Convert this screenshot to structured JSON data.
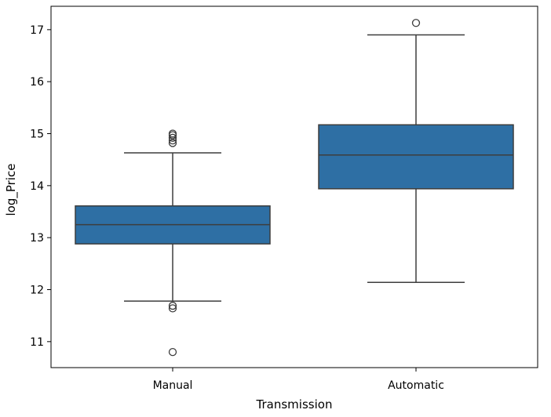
{
  "chart_data": {
    "type": "box",
    "title": "",
    "xlabel": "Transmission",
    "ylabel": "log_Price",
    "ylim": [
      10.5,
      17.45
    ],
    "yticks": [
      11,
      12,
      13,
      14,
      15,
      16,
      17
    ],
    "grid": false,
    "legend": "none",
    "box_color": "#2e6fa4",
    "line_color": "#3d3d3d",
    "categories": [
      "Manual",
      "Automatic"
    ],
    "boxes": [
      {
        "category": "Manual",
        "whisker_low": 11.78,
        "q1": 12.88,
        "median": 13.25,
        "q3": 13.61,
        "whisker_high": 14.63,
        "outliers": [
          14.82,
          14.87,
          14.92,
          14.97,
          15.0,
          11.64,
          11.69,
          10.8
        ]
      },
      {
        "category": "Automatic",
        "whisker_low": 12.14,
        "q1": 13.94,
        "median": 14.59,
        "q3": 15.17,
        "whisker_high": 16.9,
        "outliers": [
          17.13
        ]
      }
    ]
  }
}
